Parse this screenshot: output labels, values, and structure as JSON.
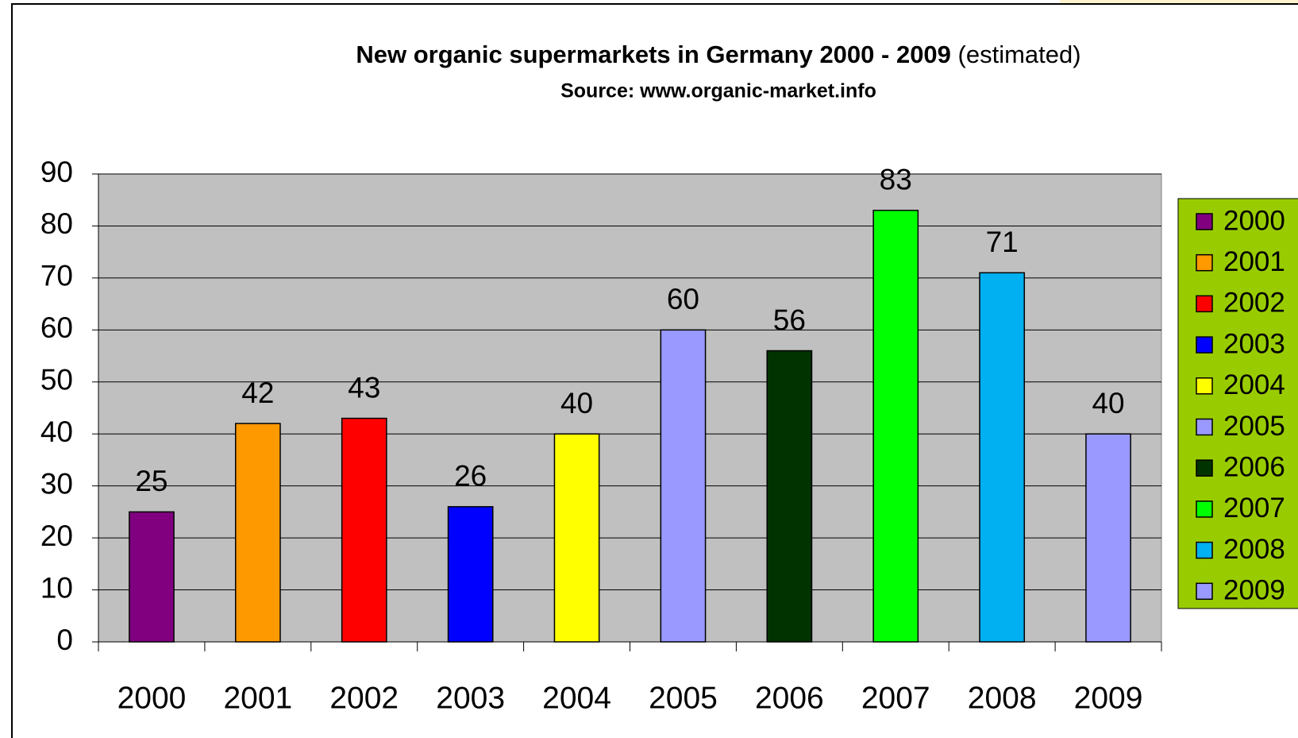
{
  "chart_data": {
    "type": "bar",
    "title": "New organic supermarkets in Germany 2000 - 2009",
    "title_note": "(estimated)",
    "subtitle": "Source: www.organic-market.info",
    "categories": [
      "2000",
      "2001",
      "2002",
      "2003",
      "2004",
      "2005",
      "2006",
      "2007",
      "2008",
      "2009"
    ],
    "values": [
      25,
      42,
      43,
      26,
      40,
      60,
      56,
      83,
      71,
      40
    ],
    "colors": [
      "#800080",
      "#ff9900",
      "#ff0000",
      "#0000ff",
      "#ffff00",
      "#9999ff",
      "#003300",
      "#00ff00",
      "#00b0f0",
      "#9999ff"
    ],
    "ylim": [
      0,
      90
    ],
    "yticks": [
      0,
      10,
      20,
      30,
      40,
      50,
      60,
      70,
      80,
      90
    ],
    "grid": true,
    "legend": "right"
  }
}
